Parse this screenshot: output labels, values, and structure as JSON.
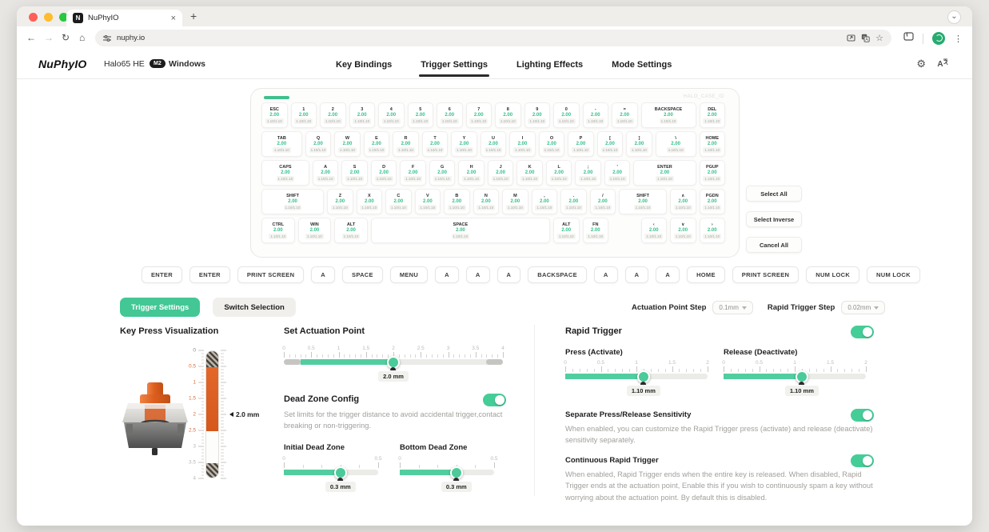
{
  "accent": "#43c795",
  "browser": {
    "tab_title": "NuPhyIO",
    "favicon_glyph": "N",
    "url": "nuphy.io",
    "traffic_lights": [
      "#ff5f57",
      "#febc2e",
      "#29c83f"
    ]
  },
  "header": {
    "logo": "NuPhyIO",
    "device": "Halo65 HE",
    "badge": "M2",
    "os": "Windows",
    "nav": [
      {
        "label": "Key Bindings",
        "active": false
      },
      {
        "label": "Trigger Settings",
        "active": true
      },
      {
        "label": "Lighting Effects",
        "active": false
      },
      {
        "label": "Mode Settings",
        "active": false
      }
    ]
  },
  "keyboard": {
    "watermark": "HALO_CASE_ID",
    "actuation_value": "2.00",
    "trigger_caption": "1.10/1.10",
    "rows": [
      [
        {
          "l": "ESC"
        },
        {
          "l": "1"
        },
        {
          "l": "2"
        },
        {
          "l": "3"
        },
        {
          "l": "4"
        },
        {
          "l": "5"
        },
        {
          "l": "6"
        },
        {
          "l": "7"
        },
        {
          "l": "8"
        },
        {
          "l": "9"
        },
        {
          "l": "0"
        },
        {
          "l": "-"
        },
        {
          "l": "="
        },
        {
          "l": "BACKSPACE",
          "u": 2
        },
        {
          "l": "DEL"
        }
      ],
      [
        {
          "l": "TAB",
          "u": 1.5
        },
        {
          "l": "Q"
        },
        {
          "l": "W"
        },
        {
          "l": "E"
        },
        {
          "l": "R"
        },
        {
          "l": "T"
        },
        {
          "l": "Y"
        },
        {
          "l": "U"
        },
        {
          "l": "I"
        },
        {
          "l": "O"
        },
        {
          "l": "P"
        },
        {
          "l": "["
        },
        {
          "l": "]"
        },
        {
          "l": "\\",
          "u": 1.5
        },
        {
          "l": "HOME"
        }
      ],
      [
        {
          "l": "CAPS",
          "u": 1.75
        },
        {
          "l": "A"
        },
        {
          "l": "S"
        },
        {
          "l": "D"
        },
        {
          "l": "F"
        },
        {
          "l": "G"
        },
        {
          "l": "H"
        },
        {
          "l": "J"
        },
        {
          "l": "K"
        },
        {
          "l": "L"
        },
        {
          "l": ";"
        },
        {
          "l": "'"
        },
        {
          "l": "ENTER",
          "u": 2.25
        },
        {
          "l": "PGUP"
        }
      ],
      [
        {
          "l": "SHIFT",
          "u": 2.25
        },
        {
          "l": "Z"
        },
        {
          "l": "X"
        },
        {
          "l": "C"
        },
        {
          "l": "V"
        },
        {
          "l": "B"
        },
        {
          "l": "N"
        },
        {
          "l": "M"
        },
        {
          "l": ","
        },
        {
          "l": "."
        },
        {
          "l": "/"
        },
        {
          "l": "SHIFT",
          "u": 1.75
        },
        {
          "l": "∧"
        },
        {
          "l": "PGDN"
        }
      ],
      [
        {
          "l": "CTRL",
          "u": 1.25
        },
        {
          "l": "WIN",
          "u": 1.25
        },
        {
          "l": "ALT",
          "u": 1.25
        },
        {
          "l": "SPACE",
          "u": 6.25
        },
        {
          "l": "ALT"
        },
        {
          "l": "FN"
        },
        {
          "gap": 1
        },
        {
          "l": "‹"
        },
        {
          "l": "∨"
        },
        {
          "l": "›"
        }
      ]
    ]
  },
  "selection_buttons": [
    "Select All",
    "Select Inverse",
    "Cancel All"
  ],
  "binding_row": [
    "ENTER",
    "ENTER",
    "PRINT SCREEN",
    "A",
    "SPACE",
    "MENU",
    "A",
    "A",
    "A",
    "BACKSPACE",
    "A",
    "A",
    "A",
    "HOME",
    "PRINT SCREEN",
    "NUM LOCK",
    "NUM LOCK"
  ],
  "panel": {
    "tabs": [
      {
        "label": "Trigger Settings",
        "active": true
      },
      {
        "label": "Switch Selection",
        "active": false
      }
    ],
    "steps": [
      {
        "label": "Actuation Point Step",
        "value": "0.1mm"
      },
      {
        "label": "Rapid Trigger Step",
        "value": "0.02mm"
      }
    ],
    "visualization": {
      "title": "Key Press Visualization",
      "max": 4,
      "labels": [
        0,
        0.5,
        1,
        1.5,
        2,
        2.5,
        3,
        3.5,
        4
      ],
      "hatch_top_to": 0.5,
      "orange_from": 0.5,
      "orange_to": 2.5,
      "hatch_bottom_from": 3.5,
      "marker_at": 2,
      "marker": "2.0 mm"
    },
    "actuation": {
      "title": "Set Actuation Point",
      "slider": {
        "min": 0,
        "max": 4,
        "label_step": 0.5,
        "tick_step": 0.1,
        "value": 2,
        "value_label": "2.0 mm",
        "start_cap": 0.3,
        "end_cap": 0.3
      }
    },
    "dead_zone": {
      "title": "Dead Zone Config",
      "enabled": true,
      "description": "Set limits for the trigger distance to avoid accidental trigger,contact breaking or non-triggering.",
      "initial": {
        "label": "Initial Dead Zone",
        "slider": {
          "min": 0,
          "max": 0.5,
          "label_step": 0.5,
          "tick_step": 0.1,
          "value": 0.3,
          "value_label": "0.3 mm"
        }
      },
      "bottom": {
        "label": "Bottom Dead Zone",
        "slider": {
          "min": 0,
          "max": 0.5,
          "label_step": 0.5,
          "tick_step": 0.1,
          "value": 0.3,
          "value_label": "0.3 mm"
        }
      }
    },
    "rapid_trigger": {
      "title": "Rapid Trigger",
      "enabled": true,
      "press": {
        "label": "Press (Activate)",
        "slider": {
          "min": 0,
          "max": 2,
          "label_step": 0.5,
          "tick_step": 0.1,
          "value": 1.1,
          "value_label": "1.10 mm"
        }
      },
      "release": {
        "label": "Release (Deactivate)",
        "slider": {
          "min": 0,
          "max": 2,
          "label_step": 0.5,
          "tick_step": 0.1,
          "value": 1.1,
          "value_label": "1.10 mm"
        }
      }
    },
    "separate_sensitivity": {
      "title": "Separate Press/Release Sensitivity",
      "enabled": true,
      "description": "When enabled, you can customize the Rapid Trigger press (activate) and release (deactivate) sensitivity separately."
    },
    "continuous_rapid_trigger": {
      "title": "Continuous Rapid Trigger",
      "enabled": true,
      "description": "When enabled, Rapid Trigger ends when the entire key is released. When disabled, Rapid Trigger ends at the actuation point, Enable this if you wish to continuously spam a key without worrying about the actuation point. By default this is disabled."
    }
  }
}
